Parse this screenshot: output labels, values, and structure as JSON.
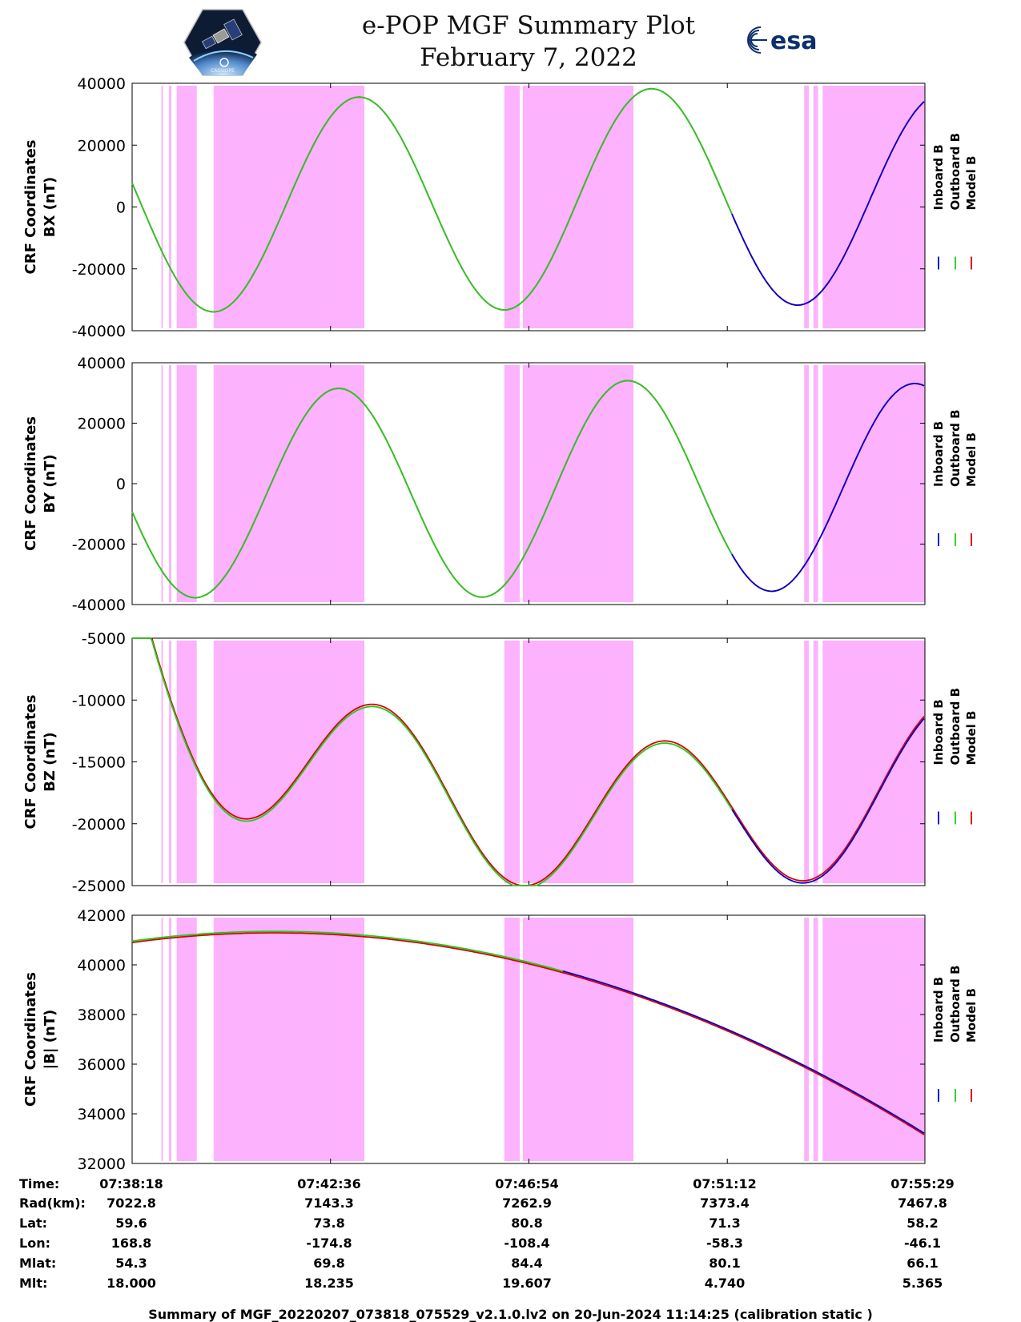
{
  "header": {
    "title": "e-POP MGF Summary Plot",
    "date": "February 7, 2022",
    "left_logo": "cassiope-satellite-logo",
    "right_logo": "esa-logo",
    "esa_text": "esa"
  },
  "colors": {
    "inboard": "#0000cc",
    "outboard": "#22cc22",
    "model": "#dd0000",
    "shade": "#fcb2fc"
  },
  "legend": [
    "Inboard B",
    "Outboard B",
    "Model B"
  ],
  "chart_data": [
    {
      "type": "line",
      "ylabel": [
        "CRF Coordinates",
        "BX (nT)"
      ],
      "ylim": [
        -40000,
        40000
      ],
      "yticks": [
        40000,
        20000,
        0,
        -20000,
        -40000
      ],
      "sine": {
        "offset": 2000,
        "amp": 36000,
        "period_s": 400,
        "phase_ref_s": 112,
        "amp_slope": -0.0
      },
      "series": [
        {
          "name": "Outboard B",
          "t_range_s": [
            0,
            780
          ]
        },
        {
          "name": "Model B",
          "t_range_s": [
            0,
            1031
          ]
        },
        {
          "name": "Inboard B",
          "t_range_s": [
            780,
            1031
          ]
        }
      ]
    },
    {
      "type": "line",
      "ylabel": [
        "CRF Coordinates",
        "BY (nT)"
      ],
      "ylim": [
        -40000,
        40000
      ],
      "yticks": [
        40000,
        20000,
        0,
        -20000,
        -40000
      ],
      "series": [
        {
          "name": "Outboard B",
          "t_range_s": [
            0,
            780
          ]
        },
        {
          "name": "Model B",
          "t_range_s": [
            0,
            1031
          ]
        },
        {
          "name": "Inboard B",
          "t_range_s": [
            780,
            1031
          ]
        }
      ]
    },
    {
      "type": "line",
      "ylabel": [
        "CRF Coordinates",
        "BZ (nT)"
      ],
      "ylim": [
        -25000,
        -5000
      ],
      "yticks": [
        -5000,
        -10000,
        -15000,
        -20000,
        -25000
      ],
      "series": [
        {
          "name": "Outboard B",
          "t_range_s": [
            0,
            780
          ]
        },
        {
          "name": "Model B",
          "t_range_s": [
            0,
            1031
          ]
        },
        {
          "name": "Inboard B",
          "t_range_s": [
            780,
            1031
          ]
        }
      ]
    },
    {
      "type": "line",
      "ylabel": [
        "CRF Coordinates",
        "|B| (nT)"
      ],
      "ylim": [
        32000,
        42000
      ],
      "yticks": [
        42000,
        40000,
        38000,
        36000,
        34000,
        32000
      ],
      "series": [
        {
          "name": "Outboard B",
          "t_range_s": [
            0,
            560
          ]
        },
        {
          "name": "Model B",
          "t_range_s": [
            0,
            1031
          ]
        },
        {
          "name": "Inboard B",
          "t_range_s": [
            560,
            1031
          ]
        }
      ]
    }
  ],
  "x_axis": {
    "t_max_s": 1031,
    "tick_s": [
      0,
      258,
      516,
      774,
      1031
    ]
  },
  "shaded_intervals_s": [
    [
      38,
      40
    ],
    [
      48,
      51
    ],
    [
      58,
      84
    ],
    [
      106,
      302
    ],
    [
      484,
      504
    ],
    [
      508,
      652
    ],
    [
      874,
      880
    ],
    [
      886,
      892
    ],
    [
      898,
      1031
    ]
  ],
  "ephemeris": {
    "rows": [
      {
        "label": "Time:",
        "values": [
          "07:38:18",
          "07:42:36",
          "07:46:54",
          "07:51:12",
          "07:55:29"
        ]
      },
      {
        "label": "Rad(km):",
        "values": [
          "7022.8",
          "7143.3",
          "7262.9",
          "7373.4",
          "7467.8"
        ]
      },
      {
        "label": "Lat:",
        "values": [
          "59.6",
          "73.8",
          "80.8",
          "71.3",
          "58.2"
        ]
      },
      {
        "label": "Lon:",
        "values": [
          "168.8",
          "-174.8",
          "-108.4",
          "-58.3",
          "-46.1"
        ]
      },
      {
        "label": "Mlat:",
        "values": [
          "54.3",
          "69.8",
          "84.4",
          "80.1",
          "66.1"
        ]
      },
      {
        "label": "Mlt:",
        "values": [
          "18.000",
          "18.235",
          "19.607",
          "4.740",
          "5.365"
        ]
      }
    ]
  },
  "footer": "Summary of MGF_20220207_073818_075529_v2.1.0.lv2 on 20-Jun-2024 11:14:25 (calibration static )"
}
